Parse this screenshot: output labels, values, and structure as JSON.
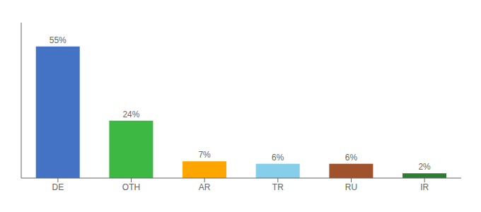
{
  "chart_data": {
    "type": "bar",
    "categories": [
      "DE",
      "OTH",
      "AR",
      "TR",
      "RU",
      "IR"
    ],
    "values": [
      55,
      24,
      7,
      6,
      6,
      2
    ],
    "value_labels": [
      "55%",
      "24%",
      "7%",
      "6%",
      "6%",
      "2%"
    ],
    "colors": [
      "#4472C4",
      "#3CB843",
      "#FFA500",
      "#87CEEB",
      "#A0522D",
      "#2E7D32"
    ],
    "ylim": [
      0,
      65
    ],
    "data_labels": true,
    "tick_labels": "x",
    "grid": false
  }
}
